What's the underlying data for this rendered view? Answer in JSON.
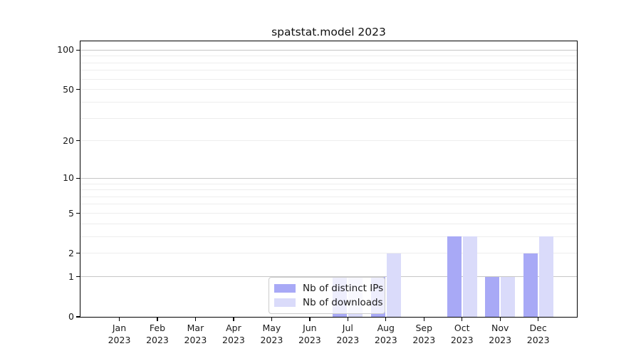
{
  "chart_data": {
    "type": "bar",
    "title": "spatstat.model 2023",
    "categories": [
      "Jan 2023",
      "Feb 2023",
      "Mar 2023",
      "Apr 2023",
      "May 2023",
      "Jun 2023",
      "Jul 2023",
      "Aug 2023",
      "Sep 2023",
      "Oct 2023",
      "Nov 2023",
      "Dec 2023"
    ],
    "series": [
      {
        "name": "Nb of distinct IPs",
        "color": "#a8a9f6",
        "values": [
          0,
          0,
          0,
          0,
          0,
          0,
          1,
          1,
          0,
          3,
          1,
          2
        ]
      },
      {
        "name": "Nb of downloads",
        "color": "#dadbfa",
        "values": [
          0,
          0,
          0,
          0,
          0,
          0,
          1,
          2,
          0,
          3,
          1,
          3
        ]
      }
    ],
    "xlabel": "",
    "ylabel": "",
    "yscale": "log1p",
    "ylim": [
      0,
      116
    ],
    "yticks": [
      0,
      1,
      2,
      5,
      10,
      20,
      50,
      100
    ],
    "grid": true,
    "grid_major_values": [
      1,
      10,
      100
    ],
    "grid_minor_values": [
      2,
      3,
      4,
      5,
      6,
      7,
      8,
      9,
      20,
      30,
      40,
      50,
      60,
      70,
      80,
      90
    ],
    "legend_position": "inside-bottom-center",
    "colors": {
      "spine": "#000000",
      "grid_major": "#c6c6c6",
      "grid_minor": "#ededed",
      "text": "#1a1a1a",
      "background": "#ffffff"
    }
  }
}
